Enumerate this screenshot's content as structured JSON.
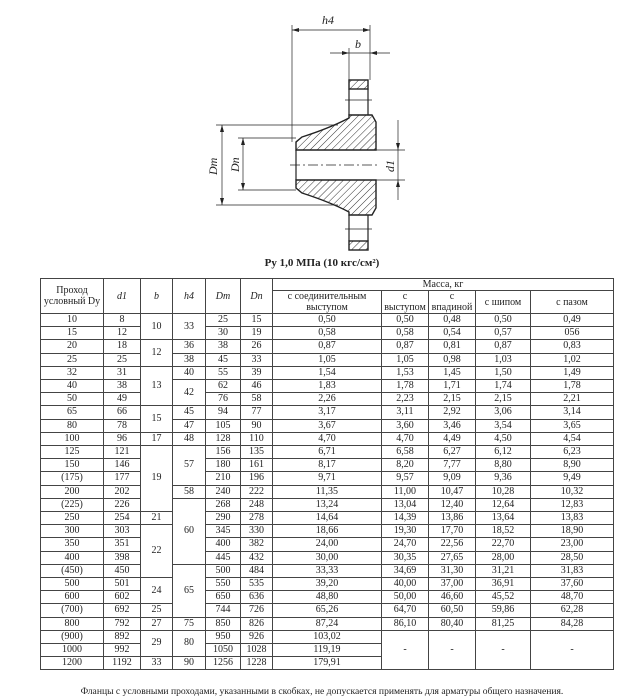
{
  "drawing_labels": {
    "h4": "h4",
    "b": "b",
    "Dm": "Dm",
    "Dn": "Dn",
    "d1": "d1"
  },
  "title": "Pу 1,0 МПа (10 кгс/см²)",
  "headers": {
    "dy": "Проход условный Dу",
    "d1": "d1",
    "b": "b",
    "h4": "h4",
    "dm": "Dm",
    "dn": "Dn",
    "mass": "Масса, кг",
    "mass_cols": [
      "с соединительным выступом",
      "с выступом",
      "с впадиной",
      "с шипом",
      "с пазом"
    ]
  },
  "rows": [
    {
      "dy": "10",
      "d1": "8",
      "b": {
        "v": "10",
        "span": 2
      },
      "h4": {
        "v": "33",
        "span": 2
      },
      "dm": "25",
      "dn": "15",
      "m": [
        "0,50",
        "0,50",
        "0,48",
        "0,50",
        "0,49"
      ]
    },
    {
      "dy": "15",
      "d1": "12",
      "dm": "30",
      "dn": "19",
      "m": [
        "0,58",
        "0,58",
        "0,54",
        "0,57",
        "056"
      ]
    },
    {
      "dy": "20",
      "d1": "18",
      "b": {
        "v": "12",
        "span": 2
      },
      "h4": {
        "v": "36",
        "span": 1
      },
      "dm": "38",
      "dn": "26",
      "m": [
        "0,87",
        "0,87",
        "0,81",
        "0,87",
        "0,83"
      ]
    },
    {
      "dy": "25",
      "d1": "25",
      "h4": {
        "v": "38",
        "span": 1
      },
      "dm": "45",
      "dn": "33",
      "m": [
        "1,05",
        "1,05",
        "0,98",
        "1,03",
        "1,02"
      ]
    },
    {
      "dy": "32",
      "d1": "31",
      "b": {
        "v": "13",
        "span": 3
      },
      "h4": {
        "v": "40",
        "span": 1
      },
      "dm": "55",
      "dn": "39",
      "m": [
        "1,54",
        "1,53",
        "1,45",
        "1,50",
        "1,49"
      ]
    },
    {
      "dy": "40",
      "d1": "38",
      "h4": {
        "v": "42",
        "span": 2
      },
      "dm": "62",
      "dn": "46",
      "m": [
        "1,83",
        "1,78",
        "1,71",
        "1,74",
        "1,78"
      ]
    },
    {
      "dy": "50",
      "d1": "49",
      "dm": "76",
      "dn": "58",
      "m": [
        "2,26",
        "2,23",
        "2,15",
        "2,15",
        "2,21"
      ]
    },
    {
      "dy": "65",
      "d1": "66",
      "b": {
        "v": "15",
        "span": 2
      },
      "h4": {
        "v": "45",
        "span": 1
      },
      "dm": "94",
      "dn": "77",
      "m": [
        "3,17",
        "3,11",
        "2,92",
        "3,06",
        "3,14"
      ]
    },
    {
      "dy": "80",
      "d1": "78",
      "h4": {
        "v": "47",
        "span": 1
      },
      "dm": "105",
      "dn": "90",
      "m": [
        "3,67",
        "3,60",
        "3,46",
        "3,54",
        "3,65"
      ]
    },
    {
      "dy": "100",
      "d1": "96",
      "b": {
        "v": "17",
        "span": 1
      },
      "h4": {
        "v": "48",
        "span": 1
      },
      "dm": "128",
      "dn": "110",
      "m": [
        "4,70",
        "4,70",
        "4,49",
        "4,50",
        "4,54"
      ]
    },
    {
      "dy": "125",
      "d1": "121",
      "b": {
        "v": "19",
        "span": 5
      },
      "h4": {
        "v": "57",
        "span": 3
      },
      "dm": "156",
      "dn": "135",
      "m": [
        "6,71",
        "6,58",
        "6,27",
        "6,12",
        "6,23"
      ]
    },
    {
      "dy": "150",
      "d1": "146",
      "dm": "180",
      "dn": "161",
      "m": [
        "8,17",
        "8,20",
        "7,77",
        "8,80",
        "8,90"
      ]
    },
    {
      "dy": "(175)",
      "d1": "177",
      "dm": "210",
      "dn": "196",
      "m": [
        "9,71",
        "9,57",
        "9,09",
        "9,36",
        "9,49"
      ]
    },
    {
      "dy": "200",
      "d1": "202",
      "h4": {
        "v": "58",
        "span": 1
      },
      "dm": "240",
      "dn": "222",
      "m": [
        "11,35",
        "11,00",
        "10,47",
        "10,28",
        "10,32"
      ]
    },
    {
      "dy": "(225)",
      "d1": "226",
      "h4": {
        "v": "60",
        "span": 5
      },
      "dm": "268",
      "dn": "248",
      "m": [
        "13,24",
        "13,04",
        "12,40",
        "12,64",
        "12,83"
      ]
    },
    {
      "dy": "250",
      "d1": "254",
      "b": {
        "v": "21",
        "span": 1
      },
      "dm": "290",
      "dn": "278",
      "m": [
        "14,64",
        "14,39",
        "13,86",
        "13,64",
        "13,83"
      ]
    },
    {
      "dy": "300",
      "d1": "303",
      "b": {
        "v": "22",
        "span": 4
      },
      "dm": "345",
      "dn": "330",
      "m": [
        "18,66",
        "19,30",
        "17,70",
        "18,52",
        "18,90"
      ]
    },
    {
      "dy": "350",
      "d1": "351",
      "dm": "400",
      "dn": "382",
      "m": [
        "24,00",
        "24,70",
        "22,56",
        "22,70",
        "23,00"
      ]
    },
    {
      "dy": "400",
      "d1": "398",
      "dm": "445",
      "dn": "432",
      "m": [
        "30,00",
        "30,35",
        "27,65",
        "28,00",
        "28,50"
      ]
    },
    {
      "dy": "(450)",
      "d1": "450",
      "h4": {
        "v": "65",
        "span": 4
      },
      "dm": "500",
      "dn": "484",
      "m": [
        "33,33",
        "34,69",
        "31,30",
        "31,21",
        "31,83"
      ]
    },
    {
      "dy": "500",
      "d1": "501",
      "b": {
        "v": "24",
        "span": 2
      },
      "dm": "550",
      "dn": "535",
      "m": [
        "39,20",
        "40,00",
        "37,00",
        "36,91",
        "37,60"
      ]
    },
    {
      "dy": "600",
      "d1": "602",
      "dm": "650",
      "dn": "636",
      "m": [
        "48,80",
        "50,00",
        "46,60",
        "45,52",
        "48,70"
      ]
    },
    {
      "dy": "(700)",
      "d1": "692",
      "b": {
        "v": "25",
        "span": 1
      },
      "dm": "744",
      "dn": "726",
      "m": [
        "65,26",
        "64,70",
        "60,50",
        "59,86",
        "62,28"
      ]
    },
    {
      "dy": "800",
      "d1": "792",
      "b": {
        "v": "27",
        "span": 1
      },
      "h4": {
        "v": "75",
        "span": 1
      },
      "dm": "850",
      "dn": "826",
      "m": [
        "87,24",
        "86,10",
        "80,40",
        "81,25",
        "84,28"
      ]
    },
    {
      "dy": "(900)",
      "d1": "892",
      "b": {
        "v": "29",
        "span": 2
      },
      "h4": {
        "v": "80",
        "span": 2
      },
      "dm": "950",
      "dn": "926",
      "m": [
        "103,02"
      ],
      "dash": {
        "v": [
          "-",
          "-",
          "-",
          "-"
        ],
        "span": 3
      }
    },
    {
      "dy": "1000",
      "d1": "992",
      "dm": "1050",
      "dn": "1028",
      "m": [
        "119,19"
      ]
    },
    {
      "dy": "1200",
      "d1": "1192",
      "b": {
        "v": "33",
        "span": 1
      },
      "h4": {
        "v": "90",
        "span": 1
      },
      "dm": "1256",
      "dn": "1228",
      "m": [
        "179,91"
      ]
    }
  ],
  "footnote": "Фланцы с условными проходами, указанными в скобках, не допускается применять для арматуры общего назначения."
}
